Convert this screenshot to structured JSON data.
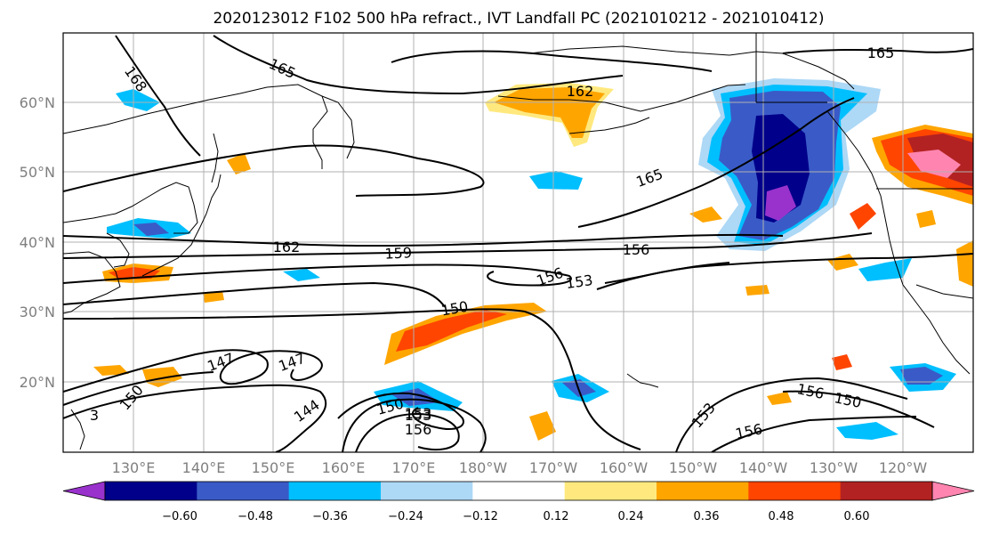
{
  "title": "2020123012 F102 500 hPa refract., IVT Landfall PC (2021010212 - 2021010412)",
  "lat_labels": [
    "60°N",
    "50°N",
    "40°N",
    "30°N",
    "20°N"
  ],
  "lon_labels": [
    "130°E",
    "140°E",
    "150°E",
    "160°E",
    "170°E",
    "180°W",
    "170°W",
    "160°W",
    "150°W",
    "140°W",
    "130°W",
    "120°W"
  ],
  "colorbar": {
    "tick_labels": [
      "−0.60",
      "−0.48",
      "−0.36",
      "−0.24",
      "−0.12",
      "0.12",
      "0.24",
      "0.36",
      "0.48",
      "0.60"
    ],
    "colors": [
      "#9932CC",
      "#00008B",
      "#3A5BC7",
      "#00BFFF",
      "#ADD8F6",
      "#FFFFFF",
      "#FFE97F",
      "#FFA500",
      "#FF4500",
      "#B22222",
      "#FF85B0"
    ]
  },
  "contour_labels": [
    "168",
    "165",
    "165",
    "165",
    "162",
    "162",
    "159",
    "156",
    "156",
    "156",
    "153",
    "153",
    "150",
    "150",
    "150",
    "150",
    "147",
    "147",
    "144",
    "153",
    "156",
    "153",
    "156",
    "3"
  ]
}
